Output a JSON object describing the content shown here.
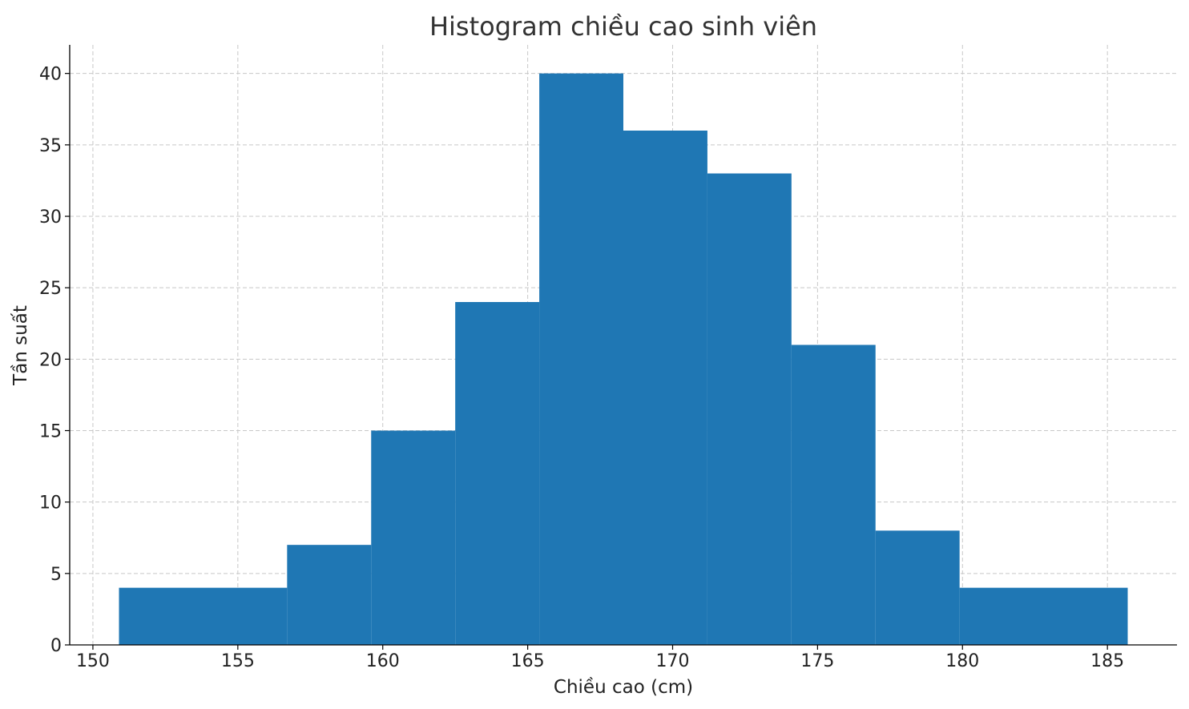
{
  "chart_data": {
    "type": "bar",
    "title": "Histogram chiều cao sinh viên",
    "xlabel": "Chiều cao (cm)",
    "ylabel": "Tần suất",
    "bins": [
      {
        "start": 150.9,
        "end": 156.7,
        "count": 4
      },
      {
        "start": 156.7,
        "end": 159.6,
        "count": 7
      },
      {
        "start": 159.6,
        "end": 162.5,
        "count": 15
      },
      {
        "start": 162.5,
        "end": 165.4,
        "count": 24
      },
      {
        "start": 165.4,
        "end": 168.3,
        "count": 40
      },
      {
        "start": 168.3,
        "end": 171.2,
        "count": 36
      },
      {
        "start": 171.2,
        "end": 174.1,
        "count": 33
      },
      {
        "start": 174.1,
        "end": 177.0,
        "count": 21
      },
      {
        "start": 177.0,
        "end": 179.9,
        "count": 8
      },
      {
        "start": 179.9,
        "end": 185.7,
        "count": 4
      }
    ],
    "xlim": [
      149.2,
      187.4
    ],
    "ylim": [
      0,
      42
    ],
    "xticks": [
      150,
      155,
      160,
      165,
      170,
      175,
      180,
      185
    ],
    "yticks": [
      0,
      5,
      10,
      15,
      20,
      25,
      30,
      35,
      40
    ],
    "grid": true,
    "bar_color": "#1f77b4"
  }
}
